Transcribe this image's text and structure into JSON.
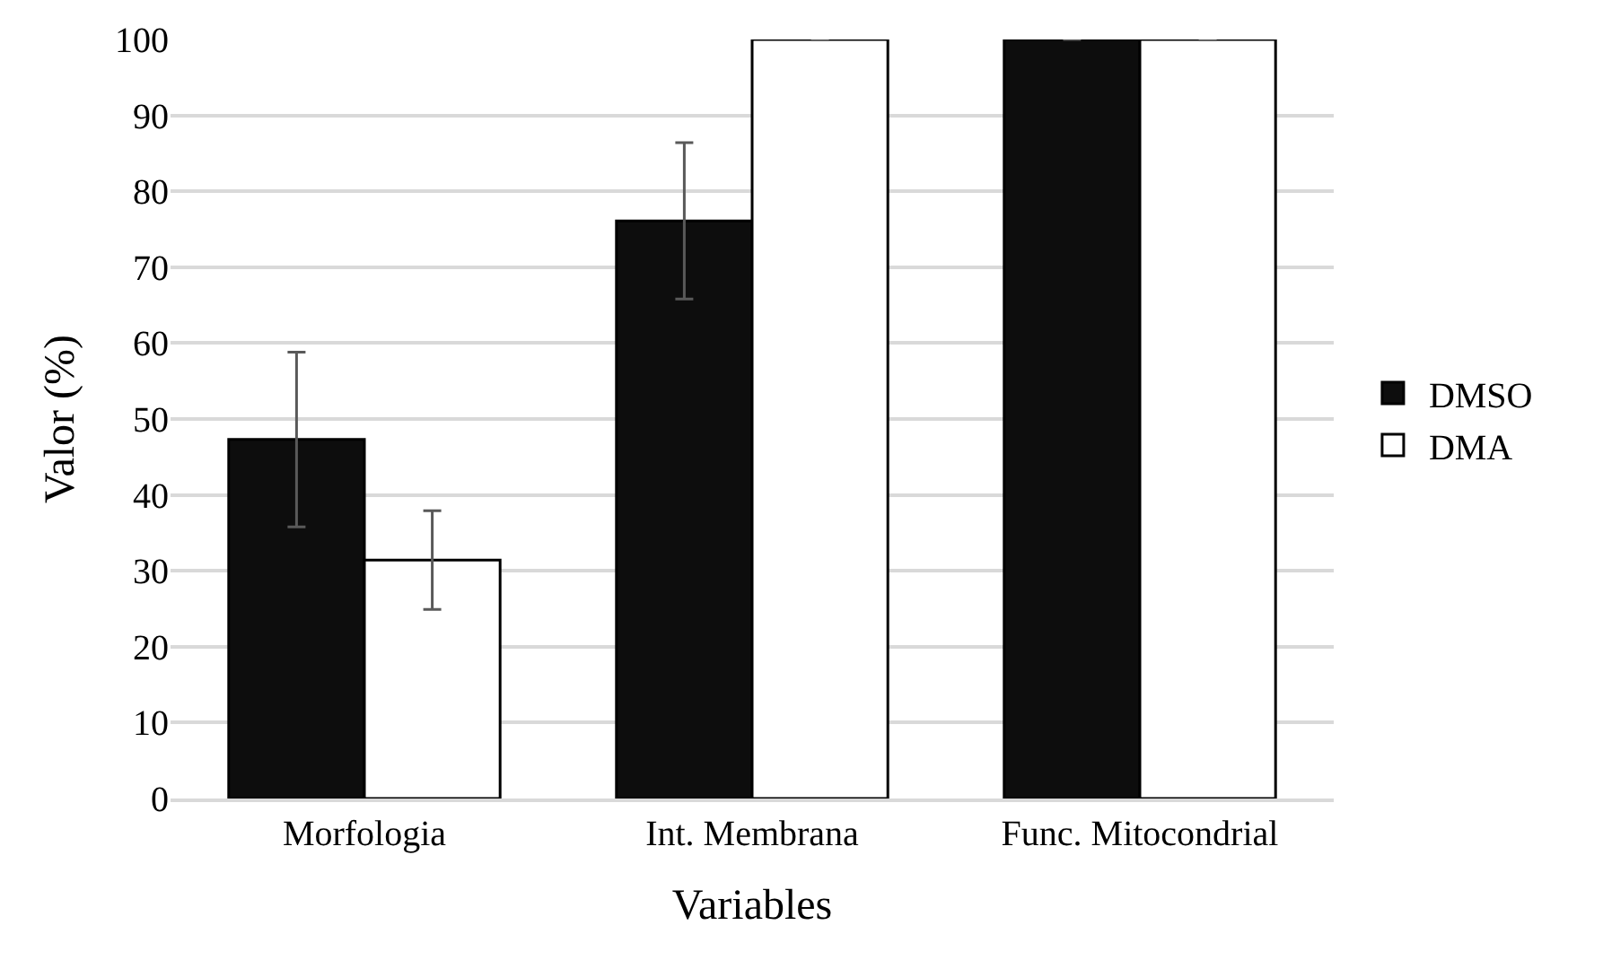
{
  "chart_data": {
    "type": "bar",
    "xlabel": "Variables",
    "ylabel": "Valor (%)",
    "categories": [
      "Morfologia",
      "Int. Membrana",
      "Func. Mitocondrial"
    ],
    "series": [
      {
        "name": "DMSO",
        "color": "#0d0d0d",
        "values": [
          47.3,
          76.1,
          100
        ],
        "errors": [
          11.5,
          10.3,
          null
        ]
      },
      {
        "name": "DMA",
        "color": "#ffffff",
        "values": [
          31.4,
          100,
          100
        ],
        "errors": [
          6.5,
          null,
          null
        ]
      }
    ],
    "ylim": [
      0,
      100
    ],
    "yticks": [
      0,
      10,
      20,
      30,
      40,
      50,
      60,
      70,
      80,
      90,
      100
    ],
    "grid": "y",
    "legend": "right"
  }
}
